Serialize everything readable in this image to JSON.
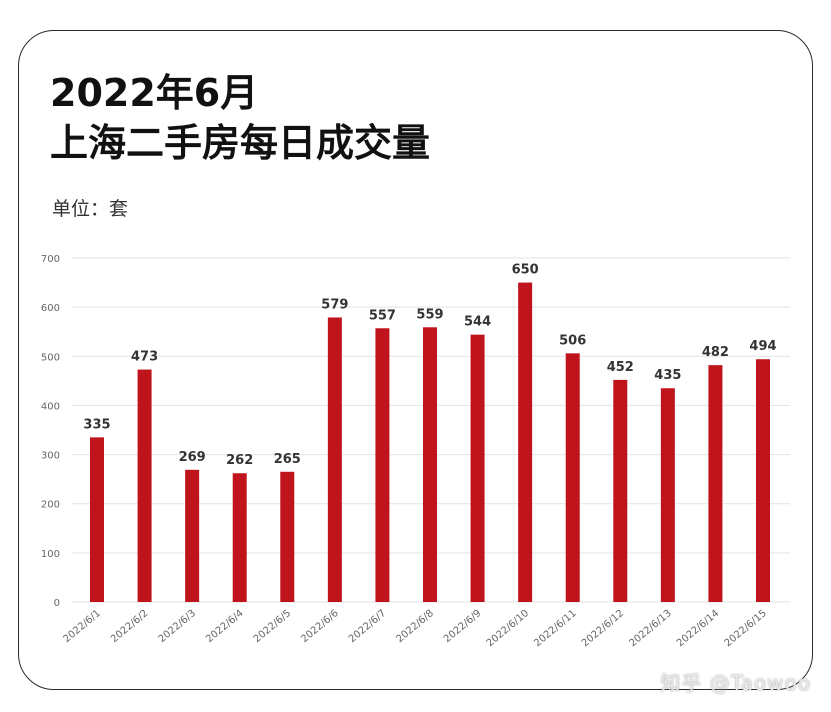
{
  "header": {
    "title": "2022年6月",
    "subtitle": "上海二手房每日成交量",
    "unit": "单位：套"
  },
  "watermark": "知乎 @Taowoo",
  "colors": {
    "bar": "#c0141c",
    "grid": "#e3e3e3",
    "axis_text": "#666666",
    "label_text": "#333333"
  },
  "chart_data": {
    "type": "bar",
    "categories": [
      "2022/6/1",
      "2022/6/2",
      "2022/6/3",
      "2022/6/4",
      "2022/6/5",
      "2022/6/6",
      "2022/6/7",
      "2022/6/8",
      "2022/6/9",
      "2022/6/10",
      "2022/6/11",
      "2022/6/12",
      "2022/6/13",
      "2022/6/14",
      "2022/6/15"
    ],
    "values": [
      335,
      473,
      269,
      262,
      265,
      579,
      557,
      559,
      544,
      650,
      506,
      452,
      435,
      482,
      494
    ],
    "title": "2022年6月 上海二手房每日成交量",
    "ylabel": "",
    "xlabel": "",
    "ylim": [
      0,
      700
    ],
    "yticks": [
      0,
      100,
      200,
      300,
      400,
      500,
      600,
      700
    ],
    "grid": true,
    "data_labels": true,
    "legend": "none"
  }
}
